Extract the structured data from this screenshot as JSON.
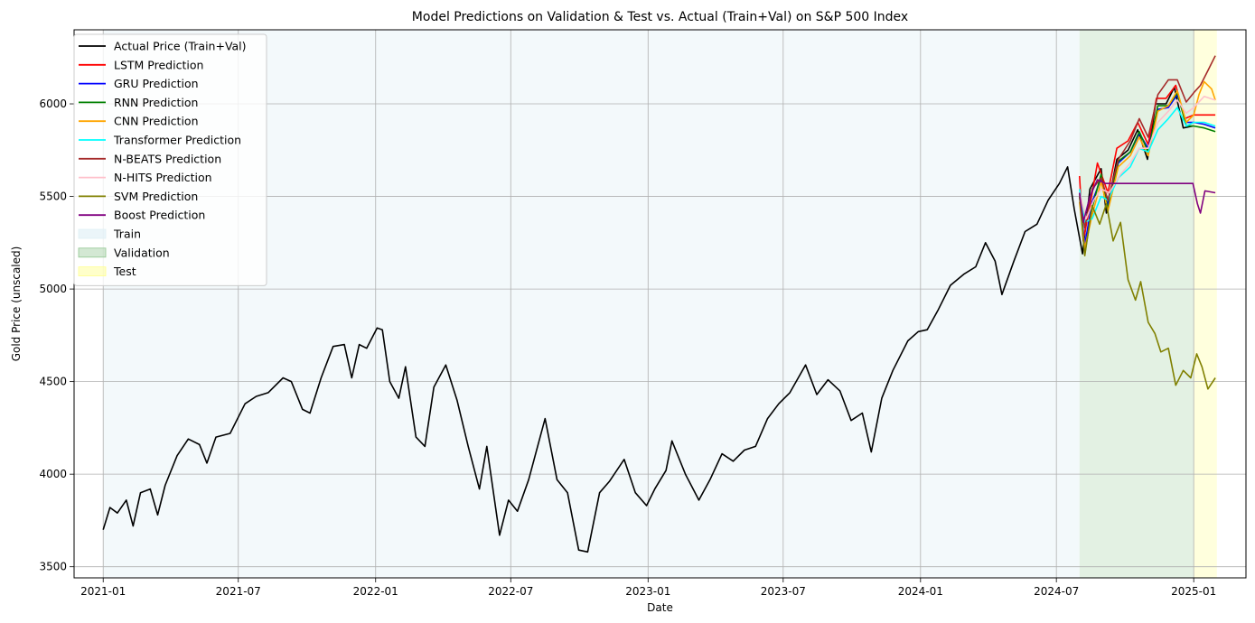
{
  "chart_data": {
    "type": "line",
    "title": "Model Predictions on Validation & Test vs. Actual (Train+Val) on S&P 500 Index",
    "xlabel": "Date",
    "ylabel": "Gold Price (unscaled)",
    "xlim": [
      "2020-11-23",
      "2025-03-12"
    ],
    "ylim": [
      3440,
      6400
    ],
    "x_ticks": [
      "2021-01",
      "2021-07",
      "2022-01",
      "2022-07",
      "2023-01",
      "2023-07",
      "2024-01",
      "2024-07",
      "2025-01"
    ],
    "y_ticks": [
      3500,
      4000,
      4500,
      5000,
      5500,
      6000
    ],
    "grid": true,
    "legend_position": "top-left",
    "regions": [
      {
        "name": "Train",
        "start": "2021-01-01",
        "end": "2024-08-01",
        "color": "#e0f0f5",
        "alpha": 0.4
      },
      {
        "name": "Validation",
        "start": "2024-08-01",
        "end": "2025-01-01",
        "color": "#90c690",
        "alpha": 0.25
      },
      {
        "name": "Test",
        "start": "2025-01-01",
        "end": "2025-02-01",
        "color": "#ffff90",
        "alpha": 0.3
      }
    ],
    "series": [
      {
        "name": "Actual Price (Train+Val)",
        "color": "#000000",
        "points": [
          [
            "2021-01-01",
            3700
          ],
          [
            "2021-01-10",
            3820
          ],
          [
            "2021-01-20",
            3790
          ],
          [
            "2021-02-01",
            3860
          ],
          [
            "2021-02-10",
            3720
          ],
          [
            "2021-02-20",
            3900
          ],
          [
            "2021-03-05",
            3920
          ],
          [
            "2021-03-15",
            3780
          ],
          [
            "2021-03-25",
            3940
          ],
          [
            "2021-04-10",
            4100
          ],
          [
            "2021-04-25",
            4190
          ],
          [
            "2021-05-10",
            4160
          ],
          [
            "2021-05-20",
            4060
          ],
          [
            "2021-06-01",
            4200
          ],
          [
            "2021-06-20",
            4220
          ],
          [
            "2021-07-10",
            4380
          ],
          [
            "2021-07-25",
            4420
          ],
          [
            "2021-08-10",
            4440
          ],
          [
            "2021-08-30",
            4520
          ],
          [
            "2021-09-10",
            4500
          ],
          [
            "2021-09-25",
            4350
          ],
          [
            "2021-10-05",
            4330
          ],
          [
            "2021-10-20",
            4520
          ],
          [
            "2021-11-05",
            4690
          ],
          [
            "2021-11-20",
            4700
          ],
          [
            "2021-11-30",
            4520
          ],
          [
            "2021-12-10",
            4700
          ],
          [
            "2021-12-20",
            4680
          ],
          [
            "2022-01-03",
            4790
          ],
          [
            "2022-01-10",
            4780
          ],
          [
            "2022-01-20",
            4500
          ],
          [
            "2022-02-01",
            4410
          ],
          [
            "2022-02-10",
            4580
          ],
          [
            "2022-02-24",
            4200
          ],
          [
            "2022-03-08",
            4150
          ],
          [
            "2022-03-20",
            4470
          ],
          [
            "2022-04-05",
            4590
          ],
          [
            "2022-04-20",
            4400
          ],
          [
            "2022-05-05",
            4150
          ],
          [
            "2022-05-20",
            3920
          ],
          [
            "2022-05-30",
            4150
          ],
          [
            "2022-06-16",
            3670
          ],
          [
            "2022-06-28",
            3860
          ],
          [
            "2022-07-10",
            3800
          ],
          [
            "2022-07-25",
            3970
          ],
          [
            "2022-08-16",
            4300
          ],
          [
            "2022-09-01",
            3970
          ],
          [
            "2022-09-15",
            3900
          ],
          [
            "2022-09-30",
            3590
          ],
          [
            "2022-10-12",
            3580
          ],
          [
            "2022-10-28",
            3900
          ],
          [
            "2022-11-10",
            3960
          ],
          [
            "2022-11-30",
            4080
          ],
          [
            "2022-12-15",
            3900
          ],
          [
            "2022-12-30",
            3830
          ],
          [
            "2023-01-10",
            3920
          ],
          [
            "2023-01-25",
            4020
          ],
          [
            "2023-02-02",
            4180
          ],
          [
            "2023-02-20",
            4000
          ],
          [
            "2023-03-10",
            3860
          ],
          [
            "2023-03-25",
            3970
          ],
          [
            "2023-04-10",
            4110
          ],
          [
            "2023-04-25",
            4070
          ],
          [
            "2023-05-10",
            4130
          ],
          [
            "2023-05-25",
            4150
          ],
          [
            "2023-06-10",
            4300
          ],
          [
            "2023-06-25",
            4380
          ],
          [
            "2023-07-10",
            4440
          ],
          [
            "2023-07-31",
            4590
          ],
          [
            "2023-08-15",
            4430
          ],
          [
            "2023-08-30",
            4510
          ],
          [
            "2023-09-15",
            4450
          ],
          [
            "2023-09-30",
            4290
          ],
          [
            "2023-10-15",
            4330
          ],
          [
            "2023-10-27",
            4120
          ],
          [
            "2023-11-10",
            4410
          ],
          [
            "2023-11-25",
            4560
          ],
          [
            "2023-12-15",
            4720
          ],
          [
            "2023-12-29",
            4770
          ],
          [
            "2024-01-10",
            4780
          ],
          [
            "2024-01-25",
            4890
          ],
          [
            "2024-02-10",
            5020
          ],
          [
            "2024-02-28",
            5080
          ],
          [
            "2024-03-15",
            5120
          ],
          [
            "2024-03-28",
            5250
          ],
          [
            "2024-04-10",
            5150
          ],
          [
            "2024-04-19",
            4970
          ],
          [
            "2024-05-05",
            5150
          ],
          [
            "2024-05-20",
            5310
          ],
          [
            "2024-06-05",
            5350
          ],
          [
            "2024-06-20",
            5480
          ],
          [
            "2024-07-05",
            5570
          ],
          [
            "2024-07-16",
            5660
          ],
          [
            "2024-07-25",
            5430
          ],
          [
            "2024-08-05",
            5190
          ],
          [
            "2024-08-15",
            5540
          ],
          [
            "2024-08-30",
            5650
          ],
          [
            "2024-09-06",
            5410
          ],
          [
            "2024-09-20",
            5700
          ],
          [
            "2024-10-05",
            5750
          ],
          [
            "2024-10-18",
            5860
          ],
          [
            "2024-10-31",
            5700
          ],
          [
            "2024-11-11",
            6000
          ],
          [
            "2024-11-25",
            6000
          ],
          [
            "2024-12-06",
            6090
          ],
          [
            "2024-12-18",
            5870
          ],
          [
            "2024-12-31",
            5880
          ]
        ]
      },
      {
        "name": "LSTM Prediction",
        "color": "#ff0000",
        "points": [
          [
            "2024-08-01",
            5610
          ],
          [
            "2024-08-06",
            5260
          ],
          [
            "2024-08-15",
            5450
          ],
          [
            "2024-08-25",
            5680
          ],
          [
            "2024-09-08",
            5520
          ],
          [
            "2024-09-20",
            5760
          ],
          [
            "2024-10-05",
            5800
          ],
          [
            "2024-10-18",
            5900
          ],
          [
            "2024-11-01",
            5780
          ],
          [
            "2024-11-12",
            6030
          ],
          [
            "2024-11-25",
            6030
          ],
          [
            "2024-12-08",
            6100
          ],
          [
            "2024-12-20",
            5920
          ],
          [
            "2025-01-01",
            5940
          ],
          [
            "2025-01-10",
            5940
          ],
          [
            "2025-01-30",
            5940
          ]
        ]
      },
      {
        "name": "GRU Prediction",
        "color": "#0000ff",
        "points": [
          [
            "2024-08-01",
            5500
          ],
          [
            "2024-08-08",
            5240
          ],
          [
            "2024-08-18",
            5470
          ],
          [
            "2024-08-30",
            5600
          ],
          [
            "2024-09-08",
            5450
          ],
          [
            "2024-09-22",
            5680
          ],
          [
            "2024-10-08",
            5740
          ],
          [
            "2024-10-20",
            5840
          ],
          [
            "2024-11-01",
            5760
          ],
          [
            "2024-11-14",
            5970
          ],
          [
            "2024-11-28",
            5980
          ],
          [
            "2024-12-10",
            6050
          ],
          [
            "2024-12-22",
            5900
          ],
          [
            "2025-01-01",
            5900
          ],
          [
            "2025-01-15",
            5890
          ],
          [
            "2025-01-30",
            5870
          ]
        ]
      },
      {
        "name": "RNN Prediction",
        "color": "#008000",
        "points": [
          [
            "2024-08-01",
            5520
          ],
          [
            "2024-08-08",
            5190
          ],
          [
            "2024-08-18",
            5440
          ],
          [
            "2024-08-30",
            5620
          ],
          [
            "2024-09-08",
            5430
          ],
          [
            "2024-09-22",
            5690
          ],
          [
            "2024-10-08",
            5740
          ],
          [
            "2024-10-20",
            5850
          ],
          [
            "2024-11-01",
            5740
          ],
          [
            "2024-11-14",
            5990
          ],
          [
            "2024-11-28",
            5990
          ],
          [
            "2024-12-10",
            6060
          ],
          [
            "2024-12-22",
            5880
          ],
          [
            "2025-01-01",
            5880
          ],
          [
            "2025-01-15",
            5870
          ],
          [
            "2025-01-30",
            5850
          ]
        ]
      },
      {
        "name": "CNN Prediction",
        "color": "#ffa500",
        "points": [
          [
            "2024-08-01",
            5470
          ],
          [
            "2024-08-08",
            5220
          ],
          [
            "2024-08-18",
            5400
          ],
          [
            "2024-08-30",
            5580
          ],
          [
            "2024-09-08",
            5420
          ],
          [
            "2024-09-22",
            5660
          ],
          [
            "2024-10-08",
            5720
          ],
          [
            "2024-10-20",
            5820
          ],
          [
            "2024-11-01",
            5720
          ],
          [
            "2024-11-14",
            5960
          ],
          [
            "2024-11-28",
            5990
          ],
          [
            "2024-12-10",
            6070
          ],
          [
            "2024-12-22",
            5900
          ],
          [
            "2025-01-01",
            5940
          ],
          [
            "2025-01-08",
            6050
          ],
          [
            "2025-01-15",
            6120
          ],
          [
            "2025-01-25",
            6080
          ],
          [
            "2025-01-30",
            6020
          ]
        ]
      },
      {
        "name": "Transformer Prediction",
        "color": "#00ffff",
        "points": [
          [
            "2024-08-01",
            5540
          ],
          [
            "2024-08-08",
            5360
          ],
          [
            "2024-08-18",
            5380
          ],
          [
            "2024-08-30",
            5500
          ],
          [
            "2024-09-08",
            5480
          ],
          [
            "2024-09-22",
            5600
          ],
          [
            "2024-10-08",
            5660
          ],
          [
            "2024-10-20",
            5760
          ],
          [
            "2024-11-01",
            5740
          ],
          [
            "2024-11-14",
            5860
          ],
          [
            "2024-11-28",
            5920
          ],
          [
            "2024-12-10",
            5980
          ],
          [
            "2024-12-22",
            5880
          ],
          [
            "2025-01-01",
            5900
          ],
          [
            "2025-01-15",
            5900
          ],
          [
            "2025-01-30",
            5880
          ]
        ]
      },
      {
        "name": "N-BEATS Prediction",
        "color": "#a52a2a",
        "points": [
          [
            "2024-08-01",
            5500
          ],
          [
            "2024-08-08",
            5330
          ],
          [
            "2024-08-18",
            5540
          ],
          [
            "2024-08-30",
            5600
          ],
          [
            "2024-09-08",
            5480
          ],
          [
            "2024-09-22",
            5700
          ],
          [
            "2024-10-08",
            5800
          ],
          [
            "2024-10-20",
            5920
          ],
          [
            "2024-11-01",
            5820
          ],
          [
            "2024-11-14",
            6050
          ],
          [
            "2024-11-28",
            6130
          ],
          [
            "2024-12-10",
            6130
          ],
          [
            "2024-12-22",
            6010
          ],
          [
            "2025-01-01",
            6060
          ],
          [
            "2025-01-10",
            6100
          ],
          [
            "2025-01-20",
            6180
          ],
          [
            "2025-01-30",
            6260
          ]
        ]
      },
      {
        "name": "N-HITS Prediction",
        "color": "#ffc0cb",
        "points": [
          [
            "2024-08-01",
            5520
          ],
          [
            "2024-08-10",
            5380
          ],
          [
            "2024-08-20",
            5480
          ],
          [
            "2024-08-30",
            5540
          ],
          [
            "2024-09-10",
            5520
          ],
          [
            "2024-09-25",
            5620
          ],
          [
            "2024-10-08",
            5680
          ],
          [
            "2024-10-20",
            5760
          ],
          [
            "2024-11-01",
            5760
          ],
          [
            "2024-11-14",
            5900
          ],
          [
            "2024-11-28",
            5960
          ],
          [
            "2024-12-10",
            6020
          ],
          [
            "2024-12-22",
            5950
          ],
          [
            "2025-01-01",
            5980
          ],
          [
            "2025-01-15",
            6040
          ],
          [
            "2025-01-30",
            6020
          ]
        ]
      },
      {
        "name": "SVM Prediction",
        "color": "#808000",
        "points": [
          [
            "2024-08-01",
            5500
          ],
          [
            "2024-08-08",
            5180
          ],
          [
            "2024-08-18",
            5450
          ],
          [
            "2024-08-28",
            5350
          ],
          [
            "2024-09-06",
            5460
          ],
          [
            "2024-09-15",
            5260
          ],
          [
            "2024-09-25",
            5360
          ],
          [
            "2024-10-05",
            5050
          ],
          [
            "2024-10-15",
            4940
          ],
          [
            "2024-10-22",
            5040
          ],
          [
            "2024-11-01",
            4820
          ],
          [
            "2024-11-10",
            4760
          ],
          [
            "2024-11-18",
            4660
          ],
          [
            "2024-11-28",
            4680
          ],
          [
            "2024-12-08",
            4480
          ],
          [
            "2024-12-18",
            4560
          ],
          [
            "2024-12-28",
            4520
          ],
          [
            "2025-01-05",
            4650
          ],
          [
            "2025-01-12",
            4580
          ],
          [
            "2025-01-20",
            4460
          ],
          [
            "2025-01-30",
            4520
          ]
        ]
      },
      {
        "name": "Boost Prediction",
        "color": "#800080",
        "points": [
          [
            "2024-08-01",
            5520
          ],
          [
            "2024-08-06",
            5360
          ],
          [
            "2024-08-15",
            5500
          ],
          [
            "2024-08-25",
            5590
          ],
          [
            "2024-09-05",
            5570
          ],
          [
            "2024-09-20",
            5570
          ],
          [
            "2024-10-10",
            5570
          ],
          [
            "2024-11-01",
            5570
          ],
          [
            "2024-12-01",
            5570
          ],
          [
            "2024-12-31",
            5570
          ],
          [
            "2025-01-06",
            5460
          ],
          [
            "2025-01-10",
            5410
          ],
          [
            "2025-01-16",
            5530
          ],
          [
            "2025-01-30",
            5520
          ]
        ]
      }
    ]
  }
}
